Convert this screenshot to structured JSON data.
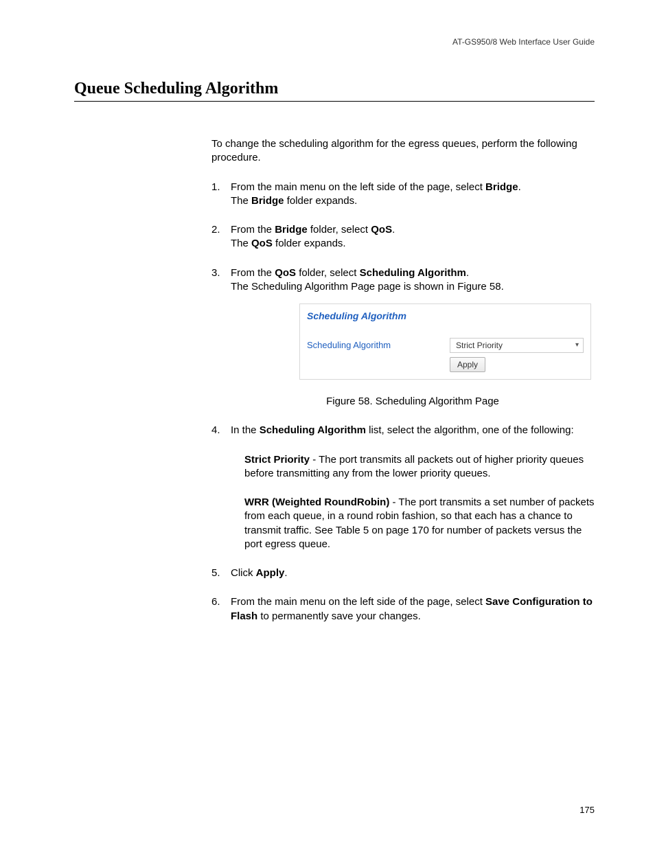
{
  "header": {
    "guide_title": "AT-GS950/8  Web Interface User Guide"
  },
  "title": "Queue Scheduling Algorithm",
  "intro": "To change the scheduling algorithm for the egress queues, perform the following procedure.",
  "steps": {
    "s1": {
      "num": "1.",
      "line1_a": "From the main menu on the left side of the page, select ",
      "line1_b": "Bridge",
      "line1_c": ".",
      "line2_a": "The ",
      "line2_b": "Bridge",
      "line2_c": " folder expands."
    },
    "s2": {
      "num": "2.",
      "line1_a": "From the ",
      "line1_b": "Bridge",
      "line1_c": " folder, select ",
      "line1_d": "QoS",
      "line1_e": ".",
      "line2_a": "The ",
      "line2_b": "QoS",
      "line2_c": " folder expands."
    },
    "s3": {
      "num": "3.",
      "line1_a": "From the ",
      "line1_b": "QoS",
      "line1_c": " folder, select ",
      "line1_d": "Scheduling Algorithm",
      "line1_e": ".",
      "line2": "The Scheduling Algorithm Page page is shown in Figure 58."
    },
    "s4": {
      "num": "4.",
      "line1_a": "In the ",
      "line1_b": "Scheduling Algorithm",
      "line1_c": " list, select the algorithm, one of the following:"
    },
    "sp": {
      "bold": "Strict Priority",
      "rest": " - The port transmits all packets out of higher priority queues before transmitting any from the lower priority queues."
    },
    "wrr": {
      "bold": "WRR (Weighted RoundRobin)",
      "rest": " - The port transmits a set number of packets from each queue, in a round robin fashion, so that each has a chance to transmit traffic. See Table 5 on page 170 for number of packets versus the port egress queue."
    },
    "s5": {
      "num": "5.",
      "line1_a": "Click ",
      "line1_b": "Apply",
      "line1_c": "."
    },
    "s6": {
      "num": "6.",
      "line1_a": "From the main menu on the left side of the page, select ",
      "line1_b": "Save Configuration to Flash",
      "line1_c": " to permanently save your changes."
    }
  },
  "figure": {
    "panel_title": "Scheduling Algorithm",
    "field_label": "Scheduling Algorithm",
    "select_value": "Strict Priority",
    "apply_label": "Apply",
    "caption": "Figure 58. Scheduling Algorithm Page",
    "colors": {
      "link_blue": "#1f5fbf",
      "border_gray": "#d8d8d8",
      "button_border": "#b0b0b0"
    }
  },
  "page_number": "175"
}
